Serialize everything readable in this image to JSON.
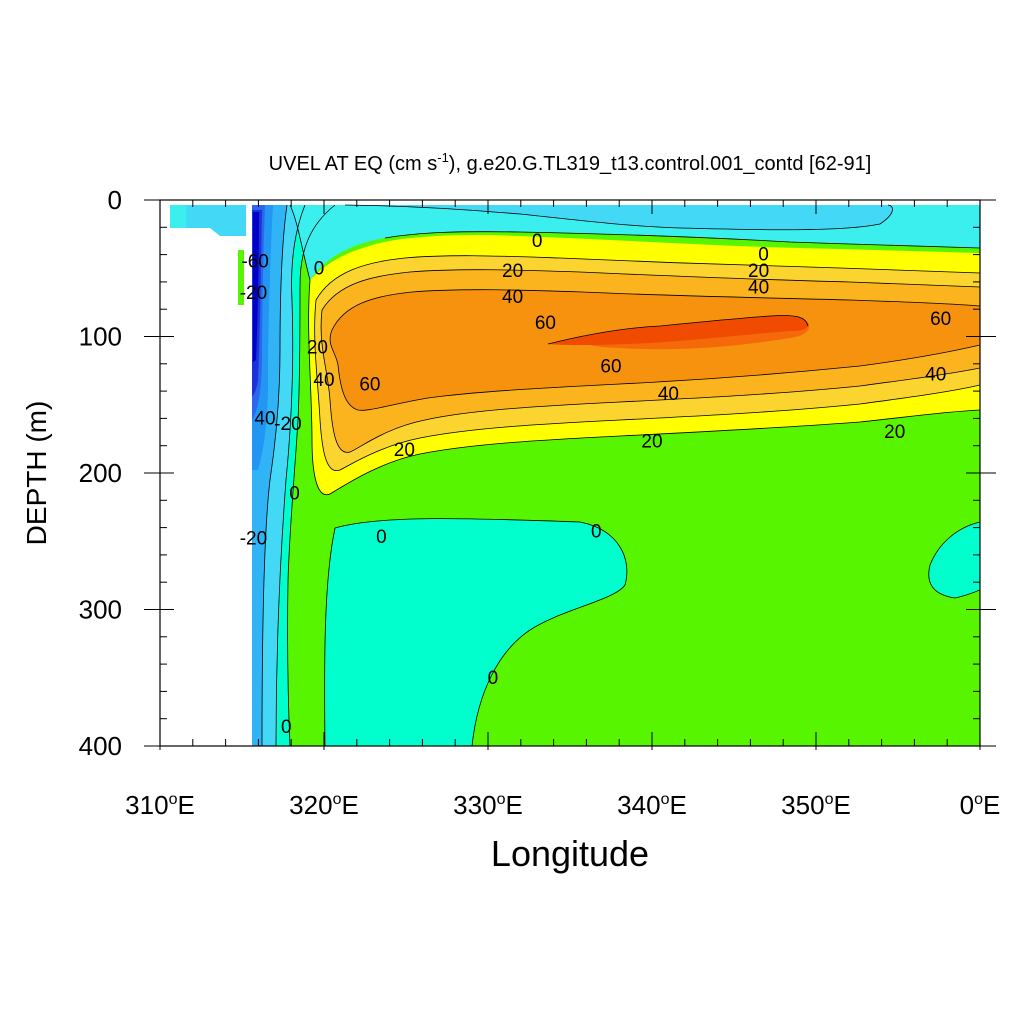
{
  "chart_data": {
    "type": "filled-contour",
    "title": "UVEL AT EQ (cm s",
    "title_exponent": "-1",
    "title_rest": "), g.e20.G.TL319_t13.control.001_contd [62-91]",
    "xlabel": "Longitude",
    "ylabel": "DEPTH (m)",
    "xlim": [
      310,
      360
    ],
    "ylim": [
      400,
      0
    ],
    "x_ticks": [
      {
        "value": 310,
        "num": "310",
        "sup": "o",
        "suffix": "E"
      },
      {
        "value": 320,
        "num": "320",
        "sup": "o",
        "suffix": "E"
      },
      {
        "value": 330,
        "num": "330",
        "sup": "o",
        "suffix": "E"
      },
      {
        "value": 340,
        "num": "340",
        "sup": "o",
        "suffix": "E"
      },
      {
        "value": 350,
        "num": "350",
        "sup": "o",
        "suffix": "E"
      },
      {
        "value": 360,
        "num": "0",
        "sup": "o",
        "suffix": "E"
      }
    ],
    "y_ticks": [
      {
        "value": 0,
        "label": "0"
      },
      {
        "value": 100,
        "label": "100"
      },
      {
        "value": 200,
        "label": "200"
      },
      {
        "value": 300,
        "label": "300"
      },
      {
        "value": 400,
        "label": "400"
      }
    ],
    "contour_interval": 10,
    "contour_levels": [
      -60,
      -50,
      -40,
      -30,
      -20,
      -10,
      0,
      10,
      20,
      30,
      40,
      50,
      60,
      70
    ],
    "level_colors": {
      "-60": "#0000c8",
      "-50": "#1a33d9",
      "-40": "#2a66ee",
      "-30": "#2196f3",
      "-20": "#31b4f5",
      "-10": "#44d8f7",
      "0": "#3cefef",
      "5": "#00ffcc",
      "10": "#58f500",
      "20": "#ffff00",
      "30": "#fcd430",
      "40": "#fcb41e",
      "50": "#f7920f",
      "60": "#f5690a",
      "70": "#f04b00"
    },
    "missing_value_color": "#ffffff",
    "contour_labels": [
      {
        "text": "0",
        "lon": 333.0,
        "depth": 30
      },
      {
        "text": "0",
        "lon": 346.8,
        "depth": 40
      },
      {
        "text": "20",
        "lon": 331.5,
        "depth": 52
      },
      {
        "text": "20",
        "lon": 346.5,
        "depth": 52
      },
      {
        "text": "40",
        "lon": 331.5,
        "depth": 71
      },
      {
        "text": "40",
        "lon": 346.5,
        "depth": 64
      },
      {
        "text": "60",
        "lon": 333.5,
        "depth": 90
      },
      {
        "text": "60",
        "lon": 337.5,
        "depth": 122
      },
      {
        "text": "60",
        "lon": 357.6,
        "depth": 87
      },
      {
        "text": "60",
        "lon": 322.8,
        "depth": 135
      },
      {
        "text": "40",
        "lon": 341.0,
        "depth": 142
      },
      {
        "text": "40",
        "lon": 357.3,
        "depth": 128
      },
      {
        "text": "40",
        "lon": 320.0,
        "depth": 132
      },
      {
        "text": "20",
        "lon": 340.0,
        "depth": 177
      },
      {
        "text": "20",
        "lon": 354.8,
        "depth": 170
      },
      {
        "text": "20",
        "lon": 324.9,
        "depth": 183
      },
      {
        "text": "20",
        "lon": 319.6,
        "depth": 108
      },
      {
        "text": "0",
        "lon": 319.7,
        "depth": 50
      },
      {
        "text": "0",
        "lon": 318.2,
        "depth": 215
      },
      {
        "text": "0",
        "lon": 323.5,
        "depth": 247
      },
      {
        "text": "0",
        "lon": 336.6,
        "depth": 243
      },
      {
        "text": "0",
        "lon": 330.3,
        "depth": 350
      },
      {
        "text": "0",
        "lon": 317.7,
        "depth": 386
      },
      {
        "text": "-20",
        "lon": 317.8,
        "depth": 164
      },
      {
        "text": "40",
        "lon": 316.4,
        "depth": 160
      },
      {
        "text": "-60",
        "lon": 315.8,
        "depth": 45
      },
      {
        "text": "-20",
        "lon": 315.7,
        "depth": 68
      },
      {
        "text": "-20",
        "lon": 315.7,
        "depth": 248
      }
    ]
  }
}
